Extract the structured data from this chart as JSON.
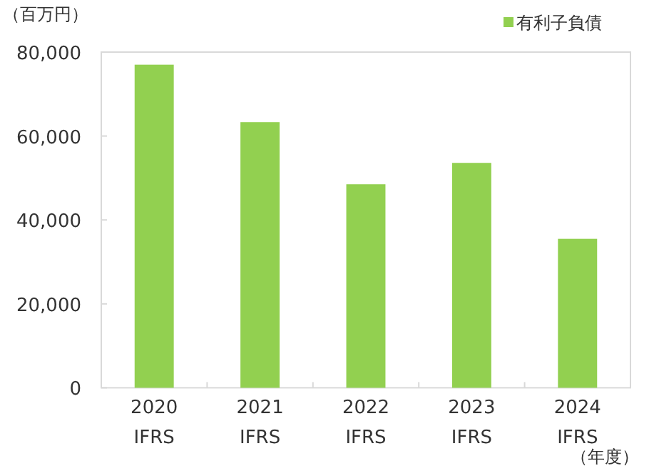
{
  "chart_data": {
    "type": "bar",
    "ylabel": "（百万円）",
    "xlabel": "（年度）",
    "categories": [
      "2020 IFRS",
      "2021 IFRS",
      "2022 IFRS",
      "2023 IFRS",
      "2024 IFRS"
    ],
    "series": [
      {
        "name": "有利子負債",
        "color": "#92d050",
        "values": [
          77000,
          63300,
          48500,
          53600,
          35500
        ]
      }
    ],
    "ylim": [
      0,
      80000
    ],
    "yticks": [
      {
        "value": 0,
        "label": "0"
      },
      {
        "value": 20000,
        "label": "20,000"
      },
      {
        "value": 40000,
        "label": "40,000"
      },
      {
        "value": 60000,
        "label": "60,000"
      },
      {
        "value": 80000,
        "label": "80,000"
      }
    ],
    "grid": false,
    "legend": "top right"
  }
}
